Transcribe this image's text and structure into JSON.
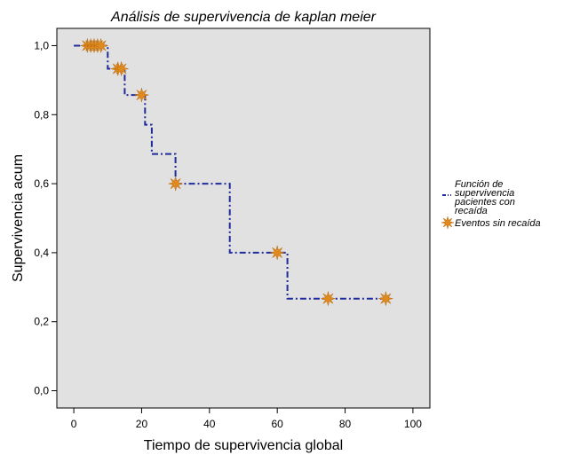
{
  "chart_data": {
    "type": "line",
    "title": "Análisis de supervivencia de kaplan meier",
    "xlabel": "Tiempo de supervivencia global",
    "ylabel": "Supervivencia acum",
    "xlim": [
      -5,
      105
    ],
    "ylim": [
      -0.05,
      1.05
    ],
    "x_ticks": [
      0,
      20,
      40,
      60,
      80,
      100
    ],
    "y_ticks": [
      0.0,
      0.2,
      0.4,
      0.6,
      0.8,
      1.0
    ],
    "x_tick_labels": [
      "0",
      "20",
      "40",
      "60",
      "80",
      "100"
    ],
    "y_tick_labels": [
      "0,0",
      "0,2",
      "0,4",
      "0,6",
      "0,8",
      "1,0"
    ],
    "grid": false,
    "legend_position": "right",
    "colors": {
      "plot_background": "#e1e1e1",
      "survival_line": "#1f2b9a",
      "censor_marker": "#e08a1e"
    },
    "series": [
      {
        "name": "Función de supervivencia pacientes con recaída",
        "legend_lines": [
          "Función de",
          "supervivencia",
          "pacientes con",
          "recaída"
        ],
        "style": "step-dashdot",
        "x": [
          0,
          10,
          10,
          15,
          15,
          21,
          21,
          23,
          23,
          30,
          30,
          46,
          46,
          63,
          63,
          92
        ],
        "y": [
          1.0,
          1.0,
          0.933,
          0.933,
          0.857,
          0.857,
          0.771,
          0.771,
          0.686,
          0.686,
          0.6,
          0.6,
          0.4,
          0.4,
          0.267,
          0.267
        ]
      },
      {
        "name": "Eventos sin recaída",
        "legend_lines": [
          "Eventos sin recaída"
        ],
        "style": "censor-marker",
        "x": [
          4,
          5,
          6,
          7,
          8,
          13,
          14,
          20,
          30,
          60,
          75,
          92
        ],
        "y": [
          1.0,
          1.0,
          1.0,
          1.0,
          1.0,
          0.933,
          0.933,
          0.857,
          0.6,
          0.4,
          0.267,
          0.267
        ]
      }
    ]
  }
}
